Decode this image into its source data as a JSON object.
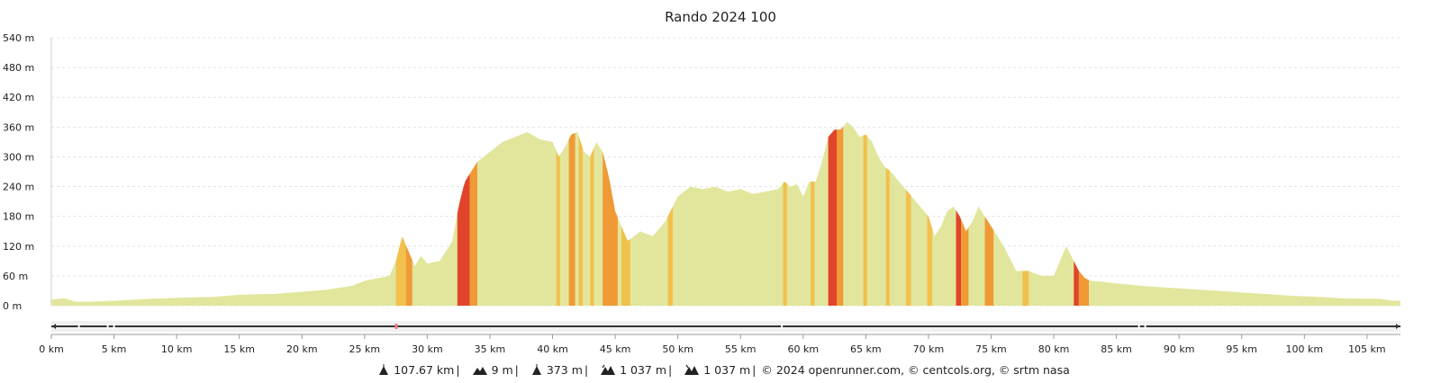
{
  "chart_data": {
    "type": "area",
    "title": "Rando 2024 100",
    "xlabel": "",
    "ylabel": "",
    "xlim": [
      0,
      107.67
    ],
    "ylim": [
      0,
      540
    ],
    "yticks": [
      "0 m",
      "60 m",
      "120 m",
      "180 m",
      "240 m",
      "300 m",
      "360 m",
      "420 m",
      "480 m",
      "540 m"
    ],
    "xticks": [
      "0 km",
      "5 km",
      "10 km",
      "15 km",
      "20 km",
      "25 km",
      "30 km",
      "35 km",
      "40 km",
      "45 km",
      "50 km",
      "55 km",
      "60 km",
      "65 km",
      "70 km",
      "75 km",
      "80 km",
      "85 km",
      "90 km",
      "95 km",
      "100 km",
      "105 km"
    ],
    "grid": true,
    "elevation": {
      "x": [
        0,
        1,
        2,
        3,
        5,
        8,
        10,
        13,
        15,
        18,
        20,
        22,
        24,
        25,
        26,
        27,
        27.5,
        28,
        28.5,
        29,
        29.5,
        30,
        31,
        32,
        32.5,
        33,
        33.5,
        34,
        35,
        36,
        37,
        38,
        39,
        40,
        40.5,
        41,
        41.5,
        42,
        42.5,
        43,
        43.5,
        44,
        44.5,
        45,
        45.5,
        46,
        46.5,
        47,
        48,
        49,
        50,
        51,
        52,
        53,
        54,
        55,
        56,
        57,
        58,
        58.5,
        59,
        59.5,
        60,
        60.5,
        61,
        61.5,
        62,
        62.5,
        63,
        63.5,
        64,
        64.5,
        65,
        65.5,
        66,
        66.5,
        67,
        68,
        69,
        70,
        70.5,
        71,
        71.5,
        72,
        72.5,
        73,
        73.5,
        74,
        74.5,
        75,
        75.5,
        76,
        77,
        78,
        79,
        80,
        80.5,
        81,
        81.5,
        82,
        82.5,
        83,
        84,
        85,
        87,
        90,
        93,
        96,
        99,
        101,
        103,
        105,
        106,
        107,
        107.67
      ],
      "y": [
        12,
        15,
        8,
        8,
        10,
        14,
        16,
        18,
        22,
        24,
        28,
        32,
        40,
        50,
        55,
        60,
        90,
        140,
        110,
        80,
        100,
        85,
        90,
        130,
        200,
        250,
        270,
        290,
        310,
        330,
        340,
        350,
        335,
        330,
        300,
        320,
        345,
        350,
        310,
        300,
        330,
        310,
        260,
        190,
        160,
        130,
        140,
        150,
        140,
        170,
        220,
        240,
        235,
        240,
        230,
        235,
        225,
        230,
        235,
        250,
        240,
        245,
        220,
        250,
        250,
        290,
        340,
        355,
        355,
        370,
        360,
        340,
        345,
        330,
        300,
        280,
        270,
        240,
        210,
        180,
        140,
        160,
        190,
        200,
        180,
        150,
        170,
        200,
        180,
        160,
        140,
        120,
        70,
        70,
        60,
        60,
        90,
        120,
        95,
        70,
        55,
        50,
        48,
        45,
        40,
        35,
        30,
        25,
        20,
        18,
        15,
        14,
        14,
        10,
        10
      ],
      "color": "#e2e69c"
    },
    "steep_sections": [
      {
        "x0": 27.5,
        "x1": 28.3,
        "level": "moderate"
      },
      {
        "x0": 28.3,
        "x1": 28.8,
        "level": "strong"
      },
      {
        "x0": 32.4,
        "x1": 33.4,
        "level": "steep"
      },
      {
        "x0": 33.4,
        "x1": 34.0,
        "level": "strong"
      },
      {
        "x0": 40.3,
        "x1": 40.6,
        "level": "moderate"
      },
      {
        "x0": 41.3,
        "x1": 41.8,
        "level": "strong"
      },
      {
        "x0": 42.1,
        "x1": 42.4,
        "level": "moderate"
      },
      {
        "x0": 43.0,
        "x1": 43.3,
        "level": "moderate"
      },
      {
        "x0": 44.0,
        "x1": 45.2,
        "level": "strong"
      },
      {
        "x0": 45.5,
        "x1": 46.2,
        "level": "moderate"
      },
      {
        "x0": 49.2,
        "x1": 49.6,
        "level": "moderate"
      },
      {
        "x0": 58.4,
        "x1": 58.7,
        "level": "moderate"
      },
      {
        "x0": 60.6,
        "x1": 60.9,
        "level": "moderate"
      },
      {
        "x0": 62.0,
        "x1": 62.7,
        "level": "steep"
      },
      {
        "x0": 62.7,
        "x1": 63.2,
        "level": "strong"
      },
      {
        "x0": 64.8,
        "x1": 65.1,
        "level": "moderate"
      },
      {
        "x0": 66.6,
        "x1": 66.9,
        "level": "moderate"
      },
      {
        "x0": 68.2,
        "x1": 68.6,
        "level": "moderate"
      },
      {
        "x0": 69.9,
        "x1": 70.3,
        "level": "moderate"
      },
      {
        "x0": 72.2,
        "x1": 72.6,
        "level": "steep"
      },
      {
        "x0": 72.6,
        "x1": 73.2,
        "level": "strong"
      },
      {
        "x0": 74.5,
        "x1": 75.2,
        "level": "strong"
      },
      {
        "x0": 77.5,
        "x1": 78.0,
        "level": "moderate"
      },
      {
        "x0": 81.6,
        "x1": 82.0,
        "level": "steep"
      },
      {
        "x0": 82.0,
        "x1": 82.8,
        "level": "strong"
      }
    ],
    "slope_colors": {
      "moderate": "#f2c04c",
      "strong": "#f09a36",
      "steep": "#e0452b"
    }
  },
  "footer": {
    "distance": "107.67 km",
    "min_alt": "9 m",
    "max_alt": "373 m",
    "elev_gain": "1 037 m",
    "elev_loss": "1 037 m",
    "credits": "© 2024 openrunner.com, © centcols.org, © srtm nasa",
    "sep": "|"
  }
}
